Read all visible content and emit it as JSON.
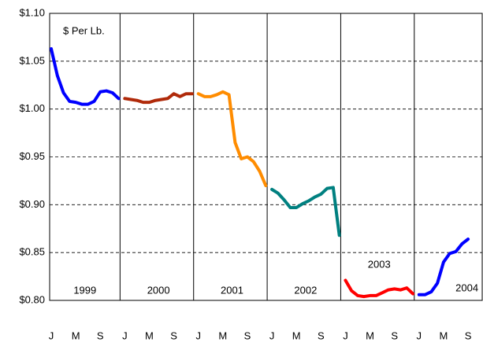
{
  "chart_data": {
    "type": "line",
    "annotation": "$ Per Lb.",
    "categories": [
      "J",
      null,
      null,
      null,
      "M",
      null,
      null,
      null,
      "S",
      null,
      null,
      null,
      "J",
      null,
      null,
      null,
      "M",
      null,
      null,
      null,
      "S",
      null,
      null,
      null,
      "J",
      null,
      null,
      null,
      "M",
      null,
      null,
      null,
      "S",
      null,
      null,
      null,
      "J",
      null,
      null,
      null,
      "M",
      null,
      null,
      null,
      "S",
      null,
      null,
      null,
      "J",
      null,
      null,
      null,
      "M",
      null,
      null,
      null,
      "S",
      null,
      null,
      null,
      "J",
      null,
      null,
      null,
      "M",
      null,
      null,
      null,
      "S"
    ],
    "series": [
      {
        "name": "1999",
        "color": "#0000ff",
        "values": [
          1.063,
          1.035,
          1.017,
          1.008,
          1.007,
          1.005,
          1.005,
          1.008,
          1.018,
          1.019,
          1.017,
          1.011,
          null,
          null,
          null,
          null,
          null,
          null,
          null,
          null,
          null,
          null,
          null,
          null,
          null,
          null,
          null,
          null,
          null,
          null,
          null,
          null,
          null,
          null,
          null,
          null,
          null,
          null,
          null,
          null,
          null,
          null,
          null,
          null,
          null,
          null,
          null,
          null,
          null,
          null,
          null,
          null,
          null,
          null,
          null,
          null,
          null,
          null,
          null,
          null,
          null,
          null,
          null,
          null,
          null,
          null,
          null,
          null,
          null
        ]
      },
      {
        "name": "2000",
        "color": "#b02a0a",
        "values": [
          null,
          null,
          null,
          null,
          null,
          null,
          null,
          null,
          null,
          null,
          null,
          null,
          1.011,
          1.01,
          1.009,
          1.007,
          1.007,
          1.009,
          1.01,
          1.011,
          1.016,
          1.013,
          1.016,
          1.016,
          null,
          null,
          null,
          null,
          null,
          null,
          null,
          null,
          null,
          null,
          null,
          null,
          null,
          null,
          null,
          null,
          null,
          null,
          null,
          null,
          null,
          null,
          null,
          null,
          null,
          null,
          null,
          null,
          null,
          null,
          null,
          null,
          null,
          null,
          null,
          null,
          null,
          null,
          null,
          null,
          null,
          null,
          null,
          null,
          null
        ]
      },
      {
        "name": "2001",
        "color": "#ff8c00",
        "values": [
          null,
          null,
          null,
          null,
          null,
          null,
          null,
          null,
          null,
          null,
          null,
          null,
          null,
          null,
          null,
          null,
          null,
          null,
          null,
          null,
          null,
          null,
          null,
          null,
          1.016,
          1.013,
          1.013,
          1.015,
          1.018,
          1.015,
          0.965,
          0.948,
          0.95,
          0.945,
          0.935,
          0.92,
          null,
          null,
          null,
          null,
          null,
          null,
          null,
          null,
          null,
          null,
          null,
          null,
          null,
          null,
          null,
          null,
          null,
          null,
          null,
          null,
          null,
          null,
          null,
          null,
          null,
          null,
          null,
          null,
          null,
          null,
          null,
          null,
          null
        ]
      },
      {
        "name": "2002",
        "color": "#008080",
        "values": [
          null,
          null,
          null,
          null,
          null,
          null,
          null,
          null,
          null,
          null,
          null,
          null,
          null,
          null,
          null,
          null,
          null,
          null,
          null,
          null,
          null,
          null,
          null,
          null,
          null,
          null,
          null,
          null,
          null,
          null,
          null,
          null,
          null,
          null,
          null,
          null,
          0.916,
          0.912,
          0.905,
          0.897,
          0.897,
          0.901,
          0.904,
          0.908,
          0.911,
          0.917,
          0.918,
          0.868,
          null,
          null,
          null,
          null,
          null,
          null,
          null,
          null,
          null,
          null,
          null,
          null,
          null,
          null,
          null,
          null,
          null,
          null,
          null,
          null,
          null
        ]
      },
      {
        "name": "2003",
        "color": "#ff0000",
        "values": [
          null,
          null,
          null,
          null,
          null,
          null,
          null,
          null,
          null,
          null,
          null,
          null,
          null,
          null,
          null,
          null,
          null,
          null,
          null,
          null,
          null,
          null,
          null,
          null,
          null,
          null,
          null,
          null,
          null,
          null,
          null,
          null,
          null,
          null,
          null,
          null,
          null,
          null,
          null,
          null,
          null,
          null,
          null,
          null,
          null,
          null,
          null,
          null,
          0.821,
          0.81,
          0.805,
          0.804,
          0.805,
          0.805,
          0.808,
          0.811,
          0.812,
          0.811,
          0.813,
          0.807,
          null,
          null,
          null,
          null,
          null,
          null,
          null,
          null,
          null
        ]
      },
      {
        "name": "2004",
        "color": "#0000ff",
        "values": [
          null,
          null,
          null,
          null,
          null,
          null,
          null,
          null,
          null,
          null,
          null,
          null,
          null,
          null,
          null,
          null,
          null,
          null,
          null,
          null,
          null,
          null,
          null,
          null,
          null,
          null,
          null,
          null,
          null,
          null,
          null,
          null,
          null,
          null,
          null,
          null,
          null,
          null,
          null,
          null,
          null,
          null,
          null,
          null,
          null,
          null,
          null,
          null,
          null,
          null,
          null,
          null,
          null,
          null,
          null,
          null,
          null,
          null,
          null,
          null,
          0.806,
          0.806,
          0.809,
          0.818,
          0.84,
          0.849,
          0.851,
          0.859,
          0.864
        ]
      }
    ],
    "ylim": [
      0.8,
      1.1
    ],
    "yticks": [
      {
        "value": 0.8,
        "label": "$0.80"
      },
      {
        "value": 0.85,
        "label": "$0.85"
      },
      {
        "value": 0.9,
        "label": "$0.90"
      },
      {
        "value": 0.95,
        "label": "$0.95"
      },
      {
        "value": 1.0,
        "label": "$1.00"
      },
      {
        "value": 1.05,
        "label": "$1.05"
      },
      {
        "value": 1.1,
        "label": "$1.10"
      }
    ],
    "grid": true
  }
}
